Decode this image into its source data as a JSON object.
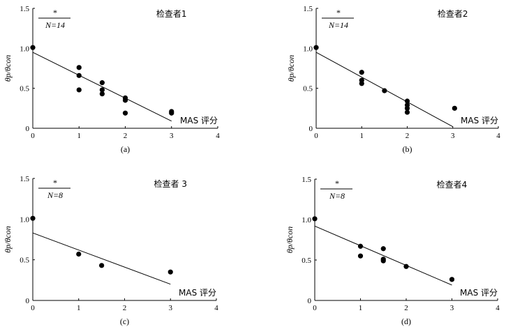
{
  "chart_data": [
    {
      "type": "scatter",
      "caption": "(a)",
      "panel_label": "检查者1",
      "significance": "*",
      "n_label": "N=14",
      "xlabel": "MAS 评分",
      "ylabel_main": "θp",
      "ylabel_sub": "θcon",
      "xlim": [
        0,
        4
      ],
      "ylim": [
        0,
        1.5
      ],
      "xticks": [
        "0",
        "1",
        "2",
        "3",
        "4"
      ],
      "yticks": [
        "0",
        "0.5",
        "1.0",
        "1.5"
      ],
      "points": [
        [
          0,
          1.01
        ],
        [
          1,
          0.76
        ],
        [
          1,
          0.66
        ],
        [
          1,
          0.48
        ],
        [
          1.5,
          0.57
        ],
        [
          1.5,
          0.48
        ],
        [
          1.5,
          0.43
        ],
        [
          2,
          0.38
        ],
        [
          2,
          0.35
        ],
        [
          2,
          0.19
        ],
        [
          3,
          0.21
        ],
        [
          3,
          0.19
        ]
      ],
      "fit_line": [
        [
          0,
          0.95
        ],
        [
          3,
          0.09
        ]
      ]
    },
    {
      "type": "scatter",
      "caption": "(b)",
      "panel_label": "检查者2",
      "significance": "*",
      "n_label": "N=14",
      "xlabel": "MAS 评分",
      "ylabel_main": "θp",
      "ylabel_sub": "θcon",
      "xlim": [
        0,
        4
      ],
      "ylim": [
        0,
        1.5
      ],
      "xticks": [
        "0",
        "1",
        "2",
        "3",
        "4"
      ],
      "yticks": [
        "0",
        "0.5",
        "1.0",
        "1.5"
      ],
      "points": [
        [
          0,
          1.01
        ],
        [
          1,
          0.7
        ],
        [
          1,
          0.6
        ],
        [
          1,
          0.56
        ],
        [
          1.5,
          0.47
        ],
        [
          2,
          0.34
        ],
        [
          2,
          0.29
        ],
        [
          2,
          0.25
        ],
        [
          2,
          0.2
        ],
        [
          3.04,
          0.25
        ]
      ],
      "fit_line": [
        [
          0,
          0.95
        ],
        [
          3,
          0.02
        ]
      ]
    },
    {
      "type": "scatter",
      "caption": "(c)",
      "panel_label": "检查者 3",
      "significance": "*",
      "n_label": "N=8",
      "xlabel": "MAS 评分",
      "ylabel_main": "θp",
      "ylabel_sub": "θcon",
      "xlim": [
        0,
        4
      ],
      "ylim": [
        0,
        1.5
      ],
      "xticks": [
        "0",
        "1",
        "2",
        "3",
        "4"
      ],
      "yticks": [
        "0",
        "0.5",
        "1.0",
        "1.5"
      ],
      "points": [
        [
          0,
          1.01
        ],
        [
          1,
          0.57
        ],
        [
          1.5,
          0.43
        ],
        [
          3,
          0.35
        ]
      ],
      "fit_line": [
        [
          0,
          0.83
        ],
        [
          3,
          0.2
        ]
      ]
    },
    {
      "type": "scatter",
      "caption": "(d)",
      "panel_label": "检查者4",
      "significance": "*",
      "n_label": "N=8",
      "xlabel": "MAS 评分",
      "ylabel_main": "θp",
      "ylabel_sub": "θcon",
      "xlim": [
        0,
        4
      ],
      "ylim": [
        0,
        1.5
      ],
      "xticks": [
        "0",
        "1",
        "2",
        "3",
        "4"
      ],
      "yticks": [
        "0",
        "0.5",
        "1.0",
        "1.5"
      ],
      "points": [
        [
          0,
          1.01
        ],
        [
          1,
          0.67
        ],
        [
          1,
          0.55
        ],
        [
          1.5,
          0.64
        ],
        [
          1.5,
          0.51
        ],
        [
          1.5,
          0.49
        ],
        [
          2,
          0.42
        ],
        [
          3,
          0.26
        ]
      ],
      "fit_line": [
        [
          0,
          0.92
        ],
        [
          3,
          0.19
        ]
      ]
    }
  ]
}
